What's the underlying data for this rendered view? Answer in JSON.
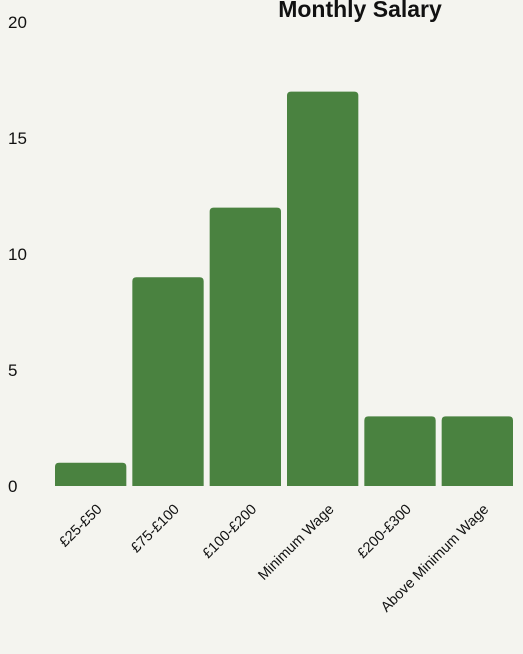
{
  "chart_data": {
    "type": "bar",
    "title": "Monthly Salary",
    "categories": [
      "£25-£50",
      "£75-£100",
      "£100-£200",
      "Minimum Wage",
      "£200-£300",
      "Above Minimum Wage"
    ],
    "values": [
      1,
      9,
      12,
      17,
      3,
      3
    ],
    "ylim": [
      0,
      20
    ],
    "yticks": [
      0,
      5,
      10,
      15,
      20
    ],
    "grid": false,
    "bar_color": "#4a8240",
    "background_color": "#f4f4ef"
  }
}
